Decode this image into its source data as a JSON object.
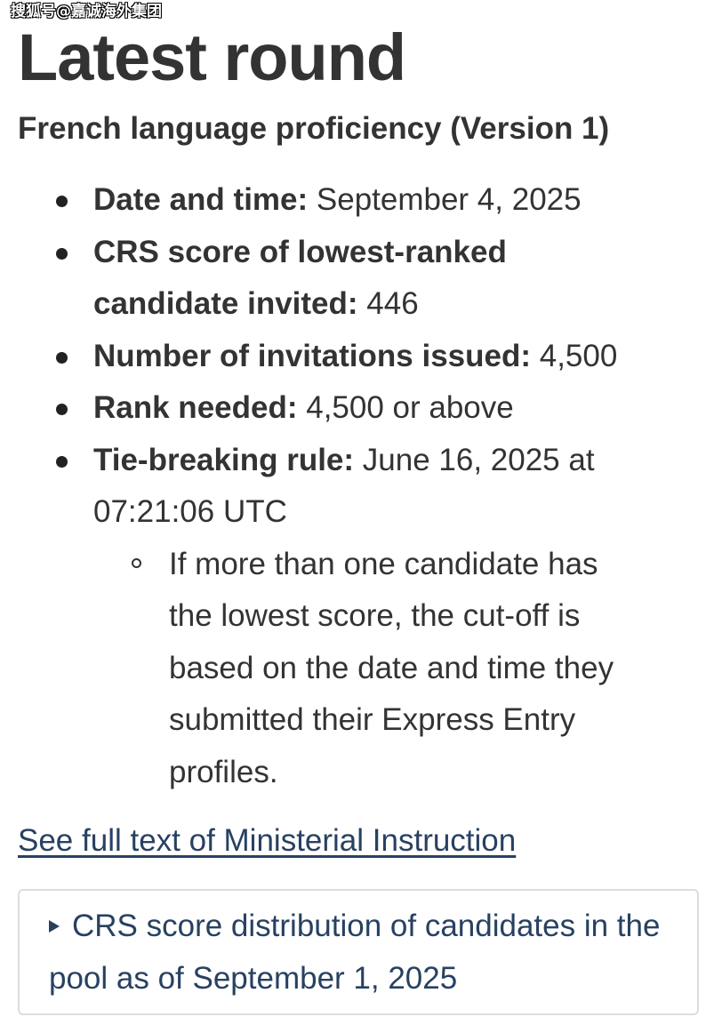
{
  "watermark": "搜狐号@嘉诚海外集团",
  "title": "Latest round",
  "subtitle": "French language proficiency (Version 1)",
  "items": [
    {
      "label": "Date and time:",
      "value": " September 4, 2025"
    },
    {
      "label": "CRS score of lowest-ranked candidate invited:",
      "value": " 446"
    },
    {
      "label": "Number of invitations issued:",
      "value": " 4,500"
    },
    {
      "label": "Rank needed:",
      "value": " 4,500 or above"
    },
    {
      "label": "Tie-breaking rule:",
      "value": " June 16, 2025 at 07:21:06 UTC"
    }
  ],
  "tie_note": "If more than one candidate has the lowest score, the cut-off is based on the date and time they submitted their Express Entry profiles.",
  "link": "See full text of Ministerial Instruction",
  "details_summary": "CRS score distribution of candidates in the pool as of September 1, 2025",
  "colors": {
    "text": "#333333",
    "link": "#284162",
    "border": "#dddddd"
  }
}
